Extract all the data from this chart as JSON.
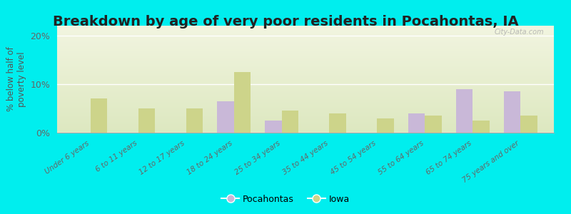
{
  "title": "Breakdown by age of very poor residents in Pocahontas, IA",
  "ylabel": "% below half of\npoverty level",
  "categories": [
    "Under 6 years",
    "6 to 11 years",
    "12 to 17 years",
    "18 to 24 years",
    "25 to 34 years",
    "35 to 44 years",
    "45 to 54 years",
    "55 to 64 years",
    "65 to 74 years",
    "75 years and over"
  ],
  "pocahontas_values": [
    0,
    0,
    0,
    6.5,
    2.5,
    0,
    0,
    4.0,
    9.0,
    8.5
  ],
  "iowa_values": [
    7.0,
    5.0,
    5.0,
    12.5,
    4.5,
    4.0,
    3.0,
    3.5,
    2.5,
    3.5
  ],
  "pocahontas_color": "#c9b8d8",
  "iowa_color": "#cdd48a",
  "background_outer": "#00eeee",
  "grad_top": "#f2f5e0",
  "grad_bottom": "#dde8c0",
  "ylim": [
    0,
    22
  ],
  "yticks": [
    0,
    10,
    20
  ],
  "ytick_labels": [
    "0%",
    "10%",
    "20%"
  ],
  "bar_width": 0.35,
  "title_fontsize": 14,
  "legend_labels": [
    "Pocahontas",
    "Iowa"
  ],
  "watermark": "City-Data.com"
}
